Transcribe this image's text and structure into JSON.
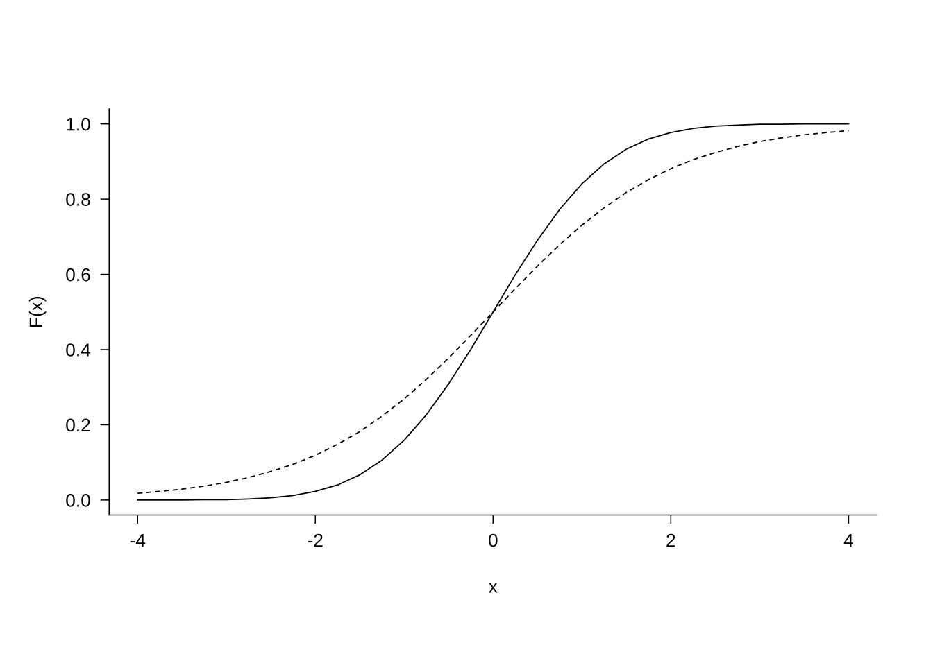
{
  "chart_data": {
    "type": "line",
    "xlabel": "x",
    "ylabel": "F(x)",
    "xlim": [
      -4.32,
      4.32
    ],
    "ylim": [
      -0.04,
      1.04
    ],
    "xticks": [
      -4,
      -2,
      0,
      2,
      4
    ],
    "yticks": [
      {
        "value": 0,
        "label": "0.0"
      },
      {
        "value": 0.2,
        "label": "0.2"
      },
      {
        "value": 0.4,
        "label": "0.4"
      },
      {
        "value": 0.6,
        "label": "0.6"
      },
      {
        "value": 0.8,
        "label": "0.8"
      },
      {
        "value": 1,
        "label": "1.0"
      }
    ],
    "marker": "none",
    "x": [
      -4,
      -3.75,
      -3.5,
      -3.25,
      -3,
      -2.75,
      -2.5,
      -2.25,
      -2,
      -1.75,
      -1.5,
      -1.25,
      -1,
      -0.75,
      -0.5,
      -0.25,
      0,
      0.25,
      0.5,
      0.75,
      1,
      1.25,
      1.5,
      1.75,
      2,
      2.25,
      2.5,
      2.75,
      3,
      3.25,
      3.5,
      3.75,
      4
    ],
    "series": [
      {
        "color": "#000000",
        "line_style": "solid",
        "values": [
          0.0,
          0.0,
          0.0,
          0.001,
          0.001,
          0.003,
          0.006,
          0.012,
          0.023,
          0.04,
          0.067,
          0.106,
          0.159,
          0.227,
          0.309,
          0.401,
          0.5,
          0.599,
          0.691,
          0.773,
          0.841,
          0.894,
          0.933,
          0.96,
          0.977,
          0.988,
          0.994,
          0.997,
          0.999,
          0.999,
          1.0,
          1.0,
          1.0
        ]
      },
      {
        "color": "#000000",
        "line_style": "dashed",
        "values": [
          0.018,
          0.023,
          0.029,
          0.037,
          0.047,
          0.06,
          0.076,
          0.095,
          0.119,
          0.148,
          0.182,
          0.223,
          0.269,
          0.321,
          0.378,
          0.438,
          0.5,
          0.562,
          0.622,
          0.679,
          0.731,
          0.777,
          0.818,
          0.852,
          0.881,
          0.905,
          0.924,
          0.94,
          0.953,
          0.963,
          0.971,
          0.977,
          0.982
        ]
      }
    ]
  }
}
